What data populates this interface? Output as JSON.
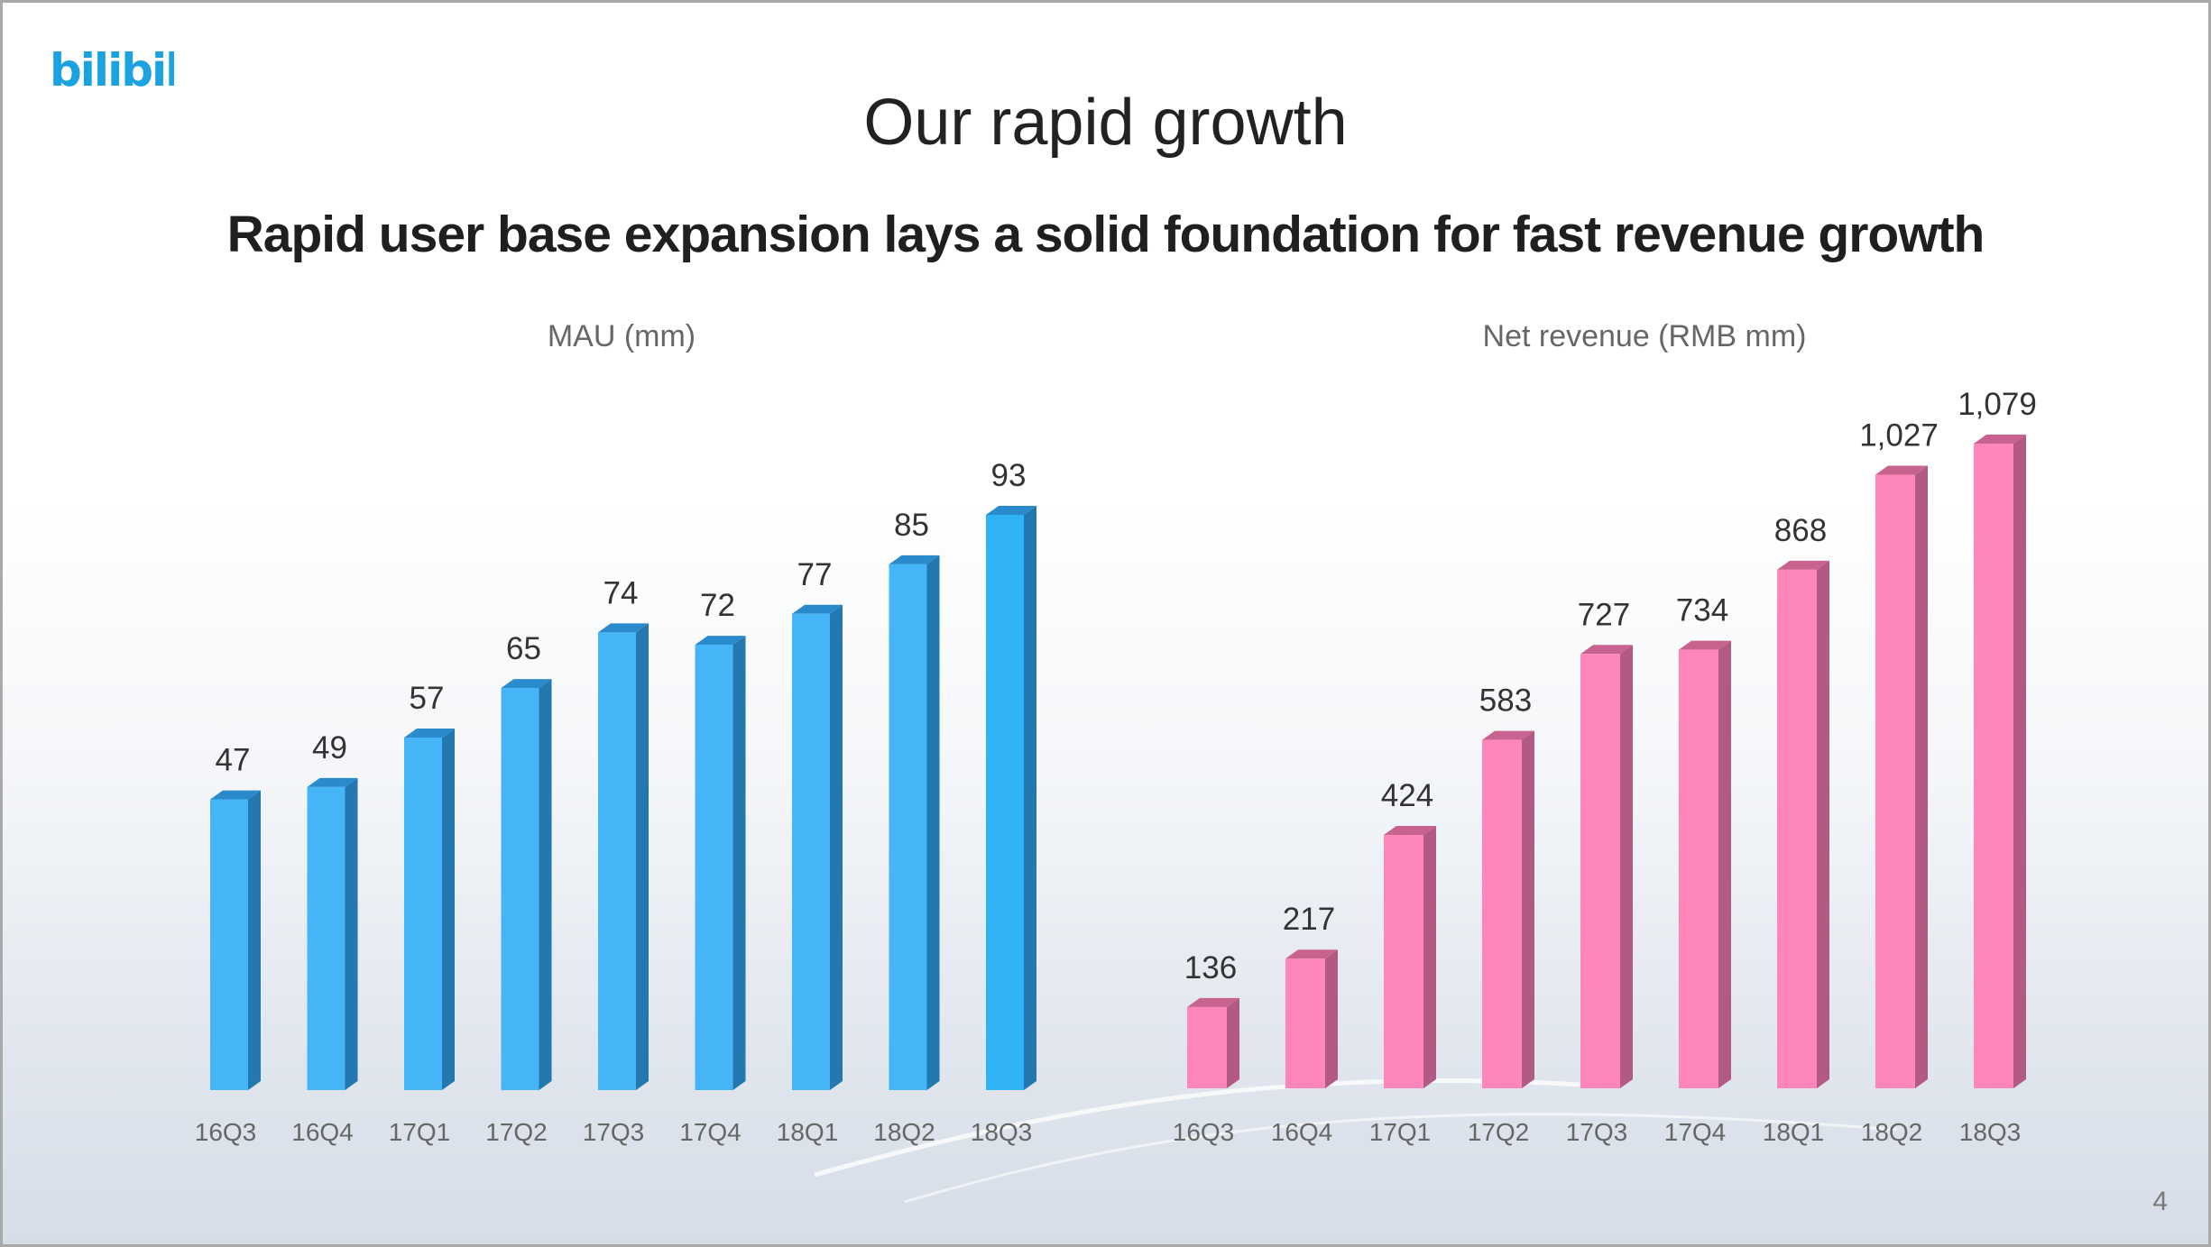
{
  "slide": {
    "logo_text": "bilibili",
    "title": "Our rapid growth",
    "subtitle": "Rapid user base expansion lays a solid foundation for fast revenue growth",
    "page_number": "4"
  },
  "colors": {
    "mau_bar_front": "#45b5f7",
    "mau_bar_last": "#2fb3f5",
    "mau_bar_side": "#2478b0",
    "mau_bar_top": "#2a8bcc",
    "rev_bar_front": "#ff86bb",
    "rev_bar_side": "#b25a84",
    "rev_bar_top": "#c8628f",
    "logo": "#1aa3e0"
  },
  "chart_data": [
    {
      "type": "bar",
      "title": "MAU (mm)",
      "categories": [
        "16Q3",
        "16Q4",
        "17Q1",
        "17Q2",
        "17Q3",
        "17Q4",
        "18Q1",
        "18Q2",
        "18Q3"
      ],
      "values": [
        47,
        49,
        57,
        65,
        74,
        72,
        77,
        85,
        93
      ],
      "data_labels": [
        "47",
        "49",
        "57",
        "65",
        "74",
        "72",
        "77",
        "85",
        "93"
      ],
      "ylim": [
        0,
        93
      ],
      "grid": false,
      "legend": "none"
    },
    {
      "type": "bar",
      "title": "Net revenue (RMB mm)",
      "categories": [
        "16Q3",
        "16Q4",
        "17Q1",
        "17Q2",
        "17Q3",
        "17Q4",
        "18Q1",
        "18Q2",
        "18Q3"
      ],
      "values": [
        136,
        217,
        424,
        583,
        727,
        734,
        868,
        1027,
        1079
      ],
      "data_labels": [
        "136",
        "217",
        "424",
        "583",
        "727",
        "734",
        "868",
        "1,027",
        "1,079"
      ],
      "ylim": [
        0,
        1079
      ],
      "grid": false,
      "legend": "none"
    }
  ]
}
